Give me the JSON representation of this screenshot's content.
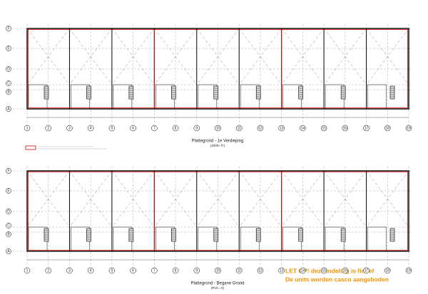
{
  "columns": [
    "1",
    "2",
    "3",
    "4",
    "5",
    "6",
    "7",
    "8",
    "9",
    "10",
    "11",
    "12",
    "13",
    "14",
    "15",
    "16",
    "17",
    "18",
    "19"
  ],
  "rows": [
    "F",
    "E",
    "D",
    "C",
    "B",
    "A"
  ],
  "plans": [
    {
      "title": "Plattegrond - 1e Verdieping",
      "subtitle": "(4000+ P.)"
    },
    {
      "title": "Plattegrond - Begane Grond",
      "subtitle": "(Peil = 0)"
    }
  ],
  "notes": [
    "LET OP! deze indeling is fictief",
    "De units worden casco aangeboden"
  ]
}
